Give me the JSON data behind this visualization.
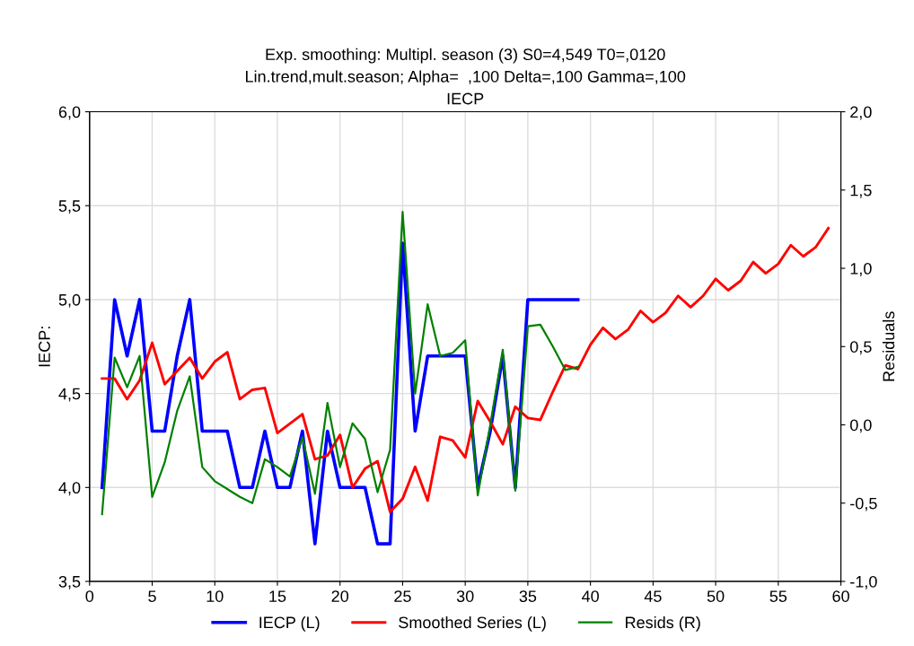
{
  "chart_data": {
    "type": "line",
    "title": "Exp. smoothing: Multipl. season (3) S0=4,549 T0=,0120\nLin.trend,mult.season; Alpha=  ,100 Delta=,100 Gamma=,100\nIECP",
    "ylabel": "IECP:",
    "y2label": "Residuals",
    "series": [
      {
        "name": "IECP (L)",
        "color": "#0000ff",
        "x": [
          1,
          2,
          3,
          4,
          5,
          6,
          7,
          8,
          9,
          10,
          11,
          12,
          13,
          14,
          15,
          16,
          17,
          18,
          19,
          20,
          21,
          22,
          23,
          24,
          25,
          26,
          27,
          28,
          29,
          30,
          31,
          32,
          33,
          34,
          35,
          36,
          37,
          38,
          39
        ],
        "values": [
          4.0,
          5.0,
          4.7,
          5.0,
          4.3,
          4.3,
          4.7,
          5.0,
          4.3,
          4.3,
          4.3,
          4.0,
          4.0,
          4.3,
          4.0,
          4.0,
          4.3,
          3.7,
          4.3,
          4.0,
          4.0,
          4.0,
          3.7,
          3.7,
          5.3,
          4.3,
          4.7,
          4.7,
          4.7,
          4.7,
          4.0,
          4.3,
          4.7,
          4.0,
          5.0,
          5.0,
          5.0,
          5.0,
          5.0
        ]
      },
      {
        "name": "Smoothed Series (L)",
        "color": "#ff0000",
        "x": [
          1,
          2,
          3,
          4,
          5,
          6,
          7,
          8,
          9,
          10,
          11,
          12,
          13,
          14,
          15,
          16,
          17,
          18,
          19,
          20,
          21,
          22,
          23,
          24,
          25,
          26,
          27,
          28,
          29,
          30,
          31,
          32,
          33,
          34,
          35,
          36,
          37,
          38,
          39,
          40,
          41,
          42,
          43,
          44,
          45,
          46,
          47,
          48,
          49,
          50,
          51,
          52,
          53,
          54,
          55,
          56,
          57,
          58,
          59
        ],
        "values": [
          4.58,
          4.58,
          4.47,
          4.57,
          4.77,
          4.55,
          4.62,
          4.69,
          4.58,
          4.67,
          4.72,
          4.47,
          4.52,
          4.53,
          4.29,
          4.34,
          4.39,
          4.15,
          4.17,
          4.28,
          4.0,
          4.1,
          4.14,
          3.87,
          3.94,
          4.11,
          3.93,
          4.27,
          4.25,
          4.16,
          4.46,
          4.35,
          4.23,
          4.43,
          4.37,
          4.36,
          4.51,
          4.65,
          4.63,
          4.76,
          4.85,
          4.79,
          4.84,
          4.94,
          4.88,
          4.93,
          5.02,
          4.96,
          5.02,
          5.11,
          5.05,
          5.1,
          5.2,
          5.14,
          5.19,
          5.29,
          5.23,
          5.28,
          5.38
        ]
      },
      {
        "name": "Resids (R)",
        "color": "#008000",
        "axis": "y2",
        "x": [
          1,
          2,
          3,
          4,
          5,
          6,
          7,
          8,
          9,
          10,
          11,
          12,
          13,
          14,
          15,
          16,
          17,
          18,
          19,
          20,
          21,
          22,
          23,
          24,
          25,
          26,
          27,
          28,
          29,
          30,
          31,
          32,
          33,
          34,
          35,
          36,
          37,
          38,
          39
        ],
        "values": [
          -0.57,
          0.43,
          0.24,
          0.44,
          -0.46,
          -0.24,
          0.09,
          0.31,
          -0.27,
          -0.36,
          -0.41,
          -0.46,
          -0.5,
          -0.22,
          -0.27,
          -0.33,
          -0.08,
          -0.44,
          0.14,
          -0.27,
          0.01,
          -0.09,
          -0.43,
          -0.16,
          1.36,
          0.2,
          0.77,
          0.44,
          0.46,
          0.54,
          -0.45,
          0.0,
          0.48,
          -0.42,
          0.63,
          0.64,
          0.5,
          0.35,
          0.37
        ]
      }
    ],
    "xlim": [
      0,
      60
    ],
    "xticks": [
      0,
      5,
      10,
      15,
      20,
      25,
      30,
      35,
      40,
      45,
      50,
      55,
      60
    ],
    "ylim": [
      3.5,
      6.0
    ],
    "yticks": [
      {
        "value": 3.5,
        "label": "3,5"
      },
      {
        "value": 4.0,
        "label": "4,0"
      },
      {
        "value": 4.5,
        "label": "4,5"
      },
      {
        "value": 5.0,
        "label": "5,0"
      },
      {
        "value": 5.5,
        "label": "5,5"
      },
      {
        "value": 6.0,
        "label": "6,0"
      }
    ],
    "y2lim": [
      -1.0,
      2.0
    ],
    "y2ticks": [
      {
        "value": -1.0,
        "label": "-1,0"
      },
      {
        "value": -0.5,
        "label": "-0,5"
      },
      {
        "value": 0.0,
        "label": "0,0"
      },
      {
        "value": 0.5,
        "label": "0,5"
      },
      {
        "value": 1.0,
        "label": "1,0"
      },
      {
        "value": 1.5,
        "label": "1,5"
      },
      {
        "value": 2.0,
        "label": "2,0"
      }
    ],
    "grid": true,
    "legend": "bottom",
    "marker": "none",
    "line_style": "solid"
  }
}
